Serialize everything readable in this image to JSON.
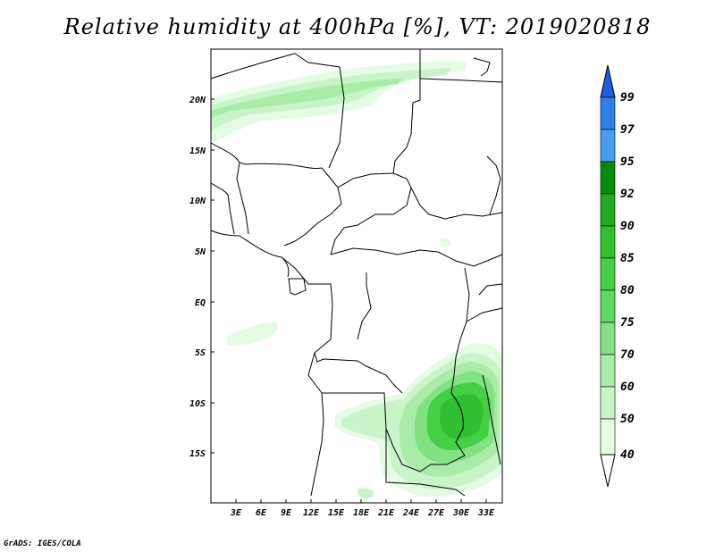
{
  "title": "Relative humidity at 400hPa [%], VT: 2019020818",
  "credit": "GrADS: IGES/COLA",
  "map": {
    "lon_labels": [
      "3E",
      "6E",
      "9E",
      "12E",
      "15E",
      "18E",
      "21E",
      "24E",
      "27E",
      "30E",
      "33E"
    ],
    "lat_labels": [
      "20N",
      "15N",
      "10N",
      "5N",
      "EQ",
      "5S",
      "10S",
      "15S"
    ],
    "lon_range": [
      0,
      35
    ],
    "lat_range": [
      -20,
      25
    ]
  },
  "colorbar": {
    "levels": [
      "99",
      "97",
      "95",
      "92",
      "90",
      "85",
      "80",
      "75",
      "70",
      "60",
      "50",
      "40"
    ],
    "colors": [
      "#1c5fd8",
      "#2f7fe6",
      "#4a9df0",
      "#0a8a0a",
      "#1faa1f",
      "#2fbf2f",
      "#45cf45",
      "#5fd85f",
      "#82e282",
      "#a8eca8",
      "#c8f4c8",
      "#e4fbe4"
    ]
  },
  "fields": {
    "band_colors": [
      "#c8f4c8",
      "#a8eca8",
      "#82e282",
      "#45cf45",
      "#2fbf2f"
    ]
  }
}
